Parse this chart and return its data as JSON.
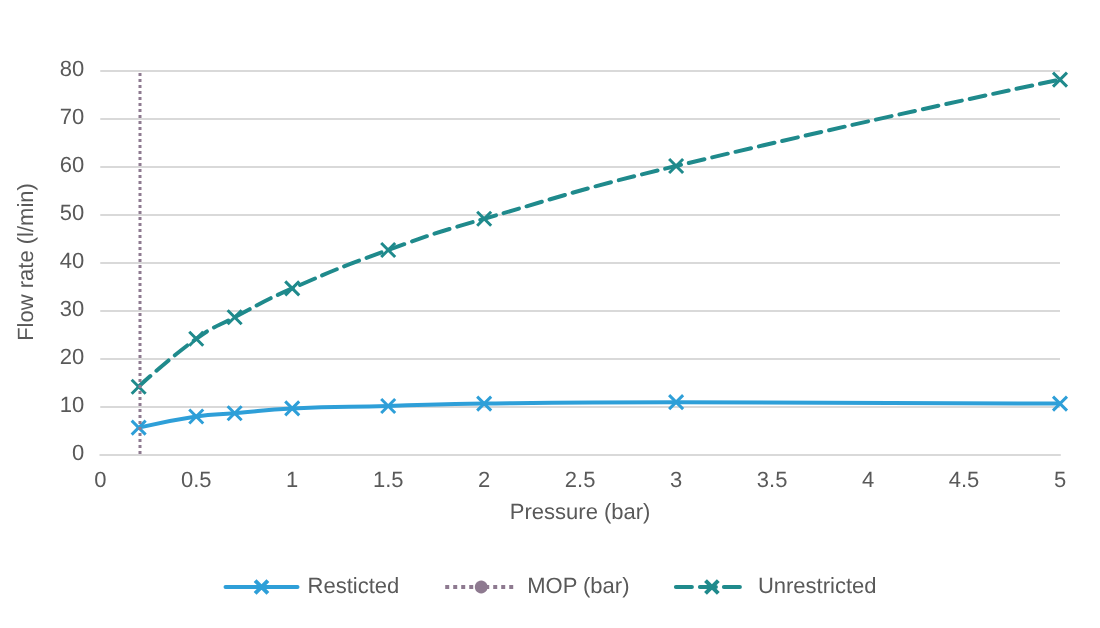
{
  "chart_data": {
    "type": "line",
    "xlabel": "Pressure (bar)",
    "ylabel": "Flow rate (l/min)",
    "xlim": [
      0,
      5
    ],
    "xticks": [
      0,
      0.5,
      1,
      1.5,
      2,
      2.5,
      3,
      3.5,
      4,
      4.5,
      5
    ],
    "ylim": [
      0,
      80
    ],
    "yticks": [
      0,
      10,
      20,
      30,
      40,
      50,
      60,
      70,
      80
    ],
    "grid": "y",
    "legend": "bottom",
    "marker": "cross",
    "series": [
      {
        "name": "Resticted",
        "color": "#2e9fd8",
        "line_style": "solid",
        "x": [
          0.2,
          0.5,
          0.7,
          1,
          1.5,
          2,
          3,
          5
        ],
        "values": [
          5.5,
          7.8,
          8.5,
          9.5,
          10,
          10.5,
          10.8,
          10.5
        ]
      },
      {
        "name": "Unrestricted",
        "color": "#1f8a8c",
        "line_style": "dashed",
        "x": [
          0.2,
          0.5,
          0.7,
          1,
          1.5,
          2,
          3,
          5
        ],
        "values": [
          14,
          24,
          28.5,
          34.5,
          42.5,
          49,
          60,
          78
        ]
      }
    ],
    "ref_lines": [
      {
        "axis": "x",
        "value": 0.2,
        "label": "MOP (bar)",
        "color": "#8e7a90",
        "line_style": "dotted"
      }
    ]
  }
}
